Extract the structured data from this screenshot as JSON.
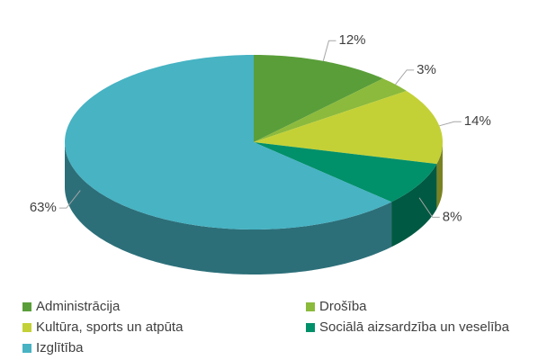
{
  "chart_data": {
    "type": "pie3d",
    "categories": [
      "Administrācija",
      "Drošība",
      "Kultūra, sports un atpūta",
      "Sociālā aizsardzība un veselība",
      "Izglītība"
    ],
    "values": [
      12,
      3,
      14,
      8,
      63
    ],
    "value_labels": [
      "12%",
      "3%",
      "14%",
      "8%",
      "63%"
    ],
    "colors": [
      "#5a9e3a",
      "#8cba3c",
      "#c3d137",
      "#00906a",
      "#47b3c3"
    ],
    "legend": "bottom"
  }
}
